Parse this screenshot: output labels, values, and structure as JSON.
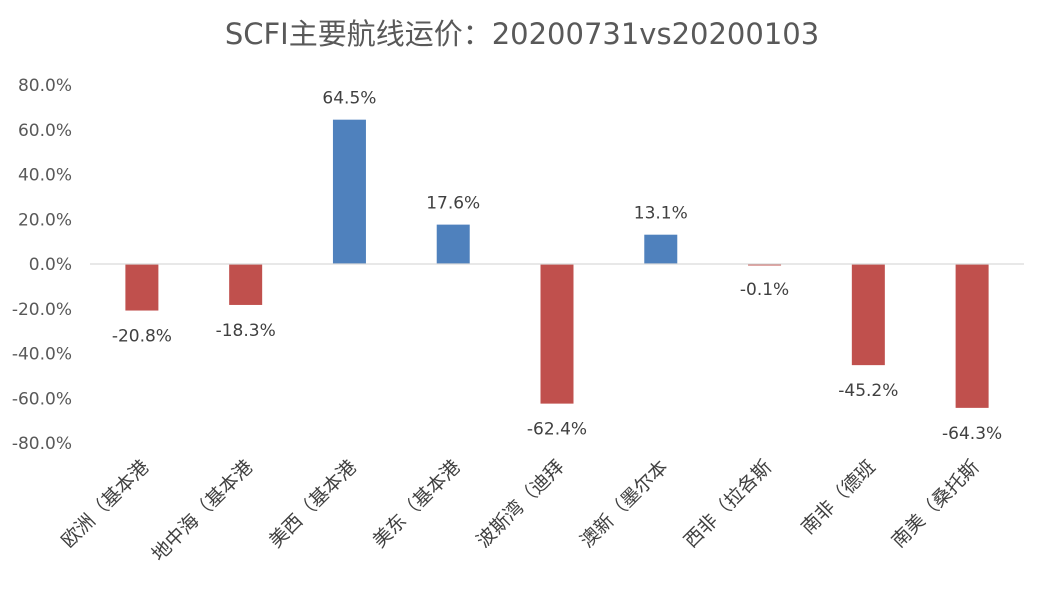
{
  "chart_data": {
    "type": "bar",
    "title": "SCFI主要航线运价：20200731vs20200103",
    "categories": [
      "欧洲（基本港",
      "地中海（基本港",
      "美西（基本港",
      "美东（基本港",
      "波斯湾（迪拜",
      "澳新（墨尔本",
      "西非（拉各斯",
      "南非（德班",
      "南美（桑托斯"
    ],
    "values": [
      -20.8,
      -18.3,
      64.5,
      17.6,
      -62.4,
      13.1,
      -0.1,
      -45.2,
      -64.3
    ],
    "data_labels": [
      "-20.8%",
      "-18.3%",
      "64.5%",
      "17.6%",
      "-62.4%",
      "13.1%",
      "-0.1%",
      "-45.2%",
      "-64.3%"
    ],
    "ylim": [
      -80,
      80
    ],
    "yticks": [
      80,
      60,
      40,
      20,
      0,
      -20,
      -40,
      -60,
      -80
    ],
    "ytick_labels": [
      "80.0%",
      "60.0%",
      "40.0%",
      "20.0%",
      "0.0%",
      "-20.0%",
      "-40.0%",
      "-60.0%",
      "-80.0%"
    ],
    "xlabel": "",
    "ylabel": "",
    "grid": false,
    "colors": {
      "positive": "#4f81bd",
      "negative": "#c0504d",
      "axis": "#d9d9d9"
    }
  }
}
